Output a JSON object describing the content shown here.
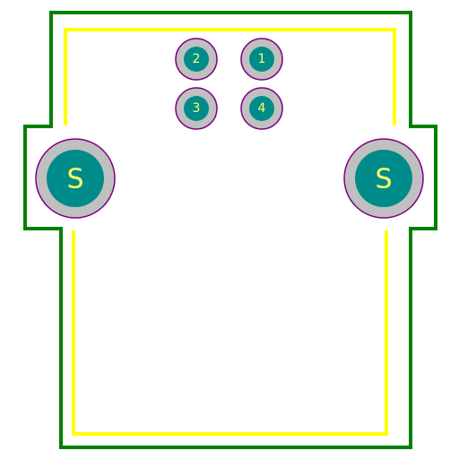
{
  "colors": {
    "background": "#ffffff",
    "courtyard": "#008000",
    "silkscreen": "#ffff00",
    "pad_copper": "#008b8b",
    "pad_ring": "#c0c0c0",
    "pad_outline": "#800080",
    "label": "#ffff66"
  },
  "pads": [
    {
      "id": "pad-1",
      "label": "1"
    },
    {
      "id": "pad-2",
      "label": "2"
    },
    {
      "id": "pad-3",
      "label": "3"
    },
    {
      "id": "pad-4",
      "label": "4"
    }
  ],
  "shield_pads": [
    {
      "id": "shield-left",
      "label": "S"
    },
    {
      "id": "shield-right",
      "label": "S"
    }
  ]
}
